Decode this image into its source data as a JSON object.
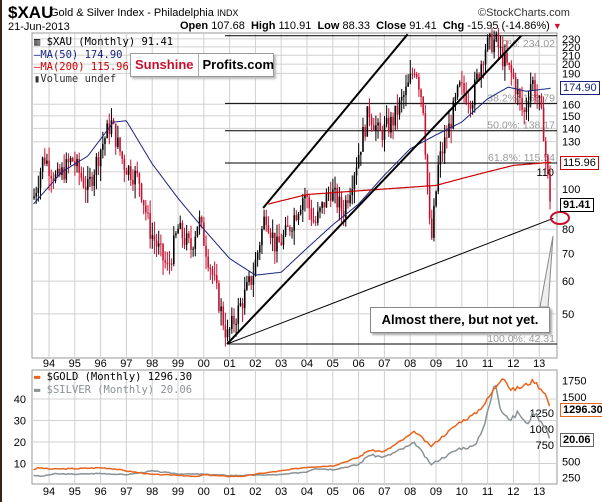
{
  "header": {
    "symbol": "$XAU",
    "subtitle": "Gold & Silver Index - Philadelphia",
    "exchange": "INDX",
    "date": "21-Jun-2013",
    "open_label": "Open",
    "open": "107.68",
    "high_label": "High",
    "high": "110.91",
    "low_label": "Low",
    "low": "88.33",
    "close_label": "Close",
    "close": "91.41",
    "chg_label": "Chg",
    "chg": "-15.95 (-14.86%)",
    "watermark": "©StockCharts.com"
  },
  "legend": {
    "main": "$XAU (Monthly) 91.41",
    "ma50": "MA(50) 174.90",
    "ma200": "MA(200) 115.96",
    "volume": "Volume undef",
    "gold": "$GOLD (Monthly) 1296.30",
    "silver": "$SILVER (Monthly) 20.06"
  },
  "logo": {
    "part1": "Sunshine",
    "part2": "Profits.com"
  },
  "annotation": "Almost there, but not yet.",
  "tags": {
    "ma50": "174.90",
    "ma200": "115.96",
    "close": "91.41",
    "gold": "1296.30",
    "silver": "20.06"
  },
  "colors": {
    "up": "#000000",
    "down": "#c8102e",
    "ma50": "#1a237e",
    "ma200": "#cc0000",
    "gold": "#e8641b",
    "silver": "#8a9296",
    "grid": "#d0d0d0"
  },
  "chart_data": [
    {
      "type": "candlestick",
      "title": "$XAU Gold & Silver Index - Philadelphia (Monthly)",
      "x_tick_labels": [
        "94",
        "95",
        "96",
        "97",
        "98",
        "99",
        "00",
        "01",
        "02",
        "03",
        "04",
        "05",
        "06",
        "07",
        "08",
        "09",
        "10",
        "11",
        "12",
        "13"
      ],
      "y_scale": "log",
      "y_ticks": [
        50,
        60,
        70,
        80,
        100,
        110,
        130,
        140,
        150,
        160,
        190,
        200,
        210,
        220,
        230
      ],
      "ylim": [
        40,
        240
      ],
      "close_keypoints": [
        [
          1993.4,
          95
        ],
        [
          1993.8,
          120
        ],
        [
          1994.3,
          105
        ],
        [
          1994.9,
          118
        ],
        [
          1995.5,
          100
        ],
        [
          1996.0,
          125
        ],
        [
          1996.4,
          145
        ],
        [
          1996.9,
          115
        ],
        [
          1997.5,
          105
        ],
        [
          1997.9,
          80
        ],
        [
          1998.6,
          64
        ],
        [
          1999.0,
          80
        ],
        [
          1999.5,
          72
        ],
        [
          1999.8,
          85
        ],
        [
          2000.4,
          60
        ],
        [
          2000.9,
          44
        ],
        [
          2001.4,
          52
        ],
        [
          2001.9,
          62
        ],
        [
          2002.4,
          88
        ],
        [
          2002.8,
          72
        ],
        [
          2003.2,
          78
        ],
        [
          2003.9,
          98
        ],
        [
          2004.3,
          82
        ],
        [
          2004.9,
          100
        ],
        [
          2005.4,
          88
        ],
        [
          2005.9,
          115
        ],
        [
          2006.4,
          155
        ],
        [
          2006.8,
          135
        ],
        [
          2007.3,
          145
        ],
        [
          2007.9,
          175
        ],
        [
          2008.2,
          200
        ],
        [
          2008.5,
          160
        ],
        [
          2008.8,
          72
        ],
        [
          2009.1,
          115
        ],
        [
          2009.5,
          140
        ],
        [
          2009.9,
          175
        ],
        [
          2010.4,
          165
        ],
        [
          2010.9,
          220
        ],
        [
          2011.3,
          228
        ],
        [
          2011.7,
          200
        ],
        [
          2012.0,
          185
        ],
        [
          2012.4,
          150
        ],
        [
          2012.7,
          185
        ],
        [
          2013.0,
          160
        ],
        [
          2013.2,
          135
        ],
        [
          2013.3,
          110
        ],
        [
          2013.46,
          91.41
        ]
      ],
      "ma50_keypoints": [
        [
          1993.4,
          92
        ],
        [
          1994.5,
          110
        ],
        [
          1995.5,
          120
        ],
        [
          1996.5,
          145
        ],
        [
          1997.0,
          146
        ],
        [
          1998.0,
          115
        ],
        [
          1999.0,
          95
        ],
        [
          2000.0,
          80
        ],
        [
          2001.0,
          68
        ],
        [
          2002.0,
          62
        ],
        [
          2003.0,
          63
        ],
        [
          2004.0,
          72
        ],
        [
          2005.0,
          82
        ],
        [
          2006.0,
          92
        ],
        [
          2007.0,
          108
        ],
        [
          2008.0,
          125
        ],
        [
          2009.0,
          135
        ],
        [
          2010.0,
          145
        ],
        [
          2011.0,
          165
        ],
        [
          2011.8,
          176
        ],
        [
          2012.5,
          172
        ],
        [
          2013.46,
          174.9
        ]
      ],
      "ma200_keypoints": [
        [
          2002.5,
          92
        ],
        [
          2004.0,
          97
        ],
        [
          2006.0,
          99
        ],
        [
          2008.0,
          101
        ],
        [
          2009.0,
          102
        ],
        [
          2010.0,
          106
        ],
        [
          2011.0,
          110
        ],
        [
          2012.0,
          114
        ],
        [
          2013.46,
          115.96
        ]
      ],
      "fibonacci": [
        {
          "label": "0.0%: 234.02",
          "value": 234.02
        },
        {
          "label": "38.2%: 160.79",
          "value": 160.79
        },
        {
          "label": "50.0%: 138.17",
          "value": 138.17
        },
        {
          "label": "61.8%: 115.54",
          "value": 115.54
        },
        {
          "label": "100.0%: 42.31",
          "value": 42.31
        }
      ],
      "trendlines": [
        [
          [
            2000.9,
            42.31
          ],
          [
            2012.3,
            234
          ]
        ],
        [
          [
            2002.3,
            90
          ],
          [
            2007.9,
            236
          ]
        ],
        [
          [
            2000.9,
            42.31
          ],
          [
            2013.55,
            85
          ]
        ]
      ]
    },
    {
      "type": "line",
      "series": [
        {
          "name": "$GOLD (Monthly)",
          "axis": "right",
          "last": 1296.3,
          "keypoints": [
            [
              1993.4,
              370
            ],
            [
              1993.6,
              400
            ],
            [
              1994.0,
              380
            ],
            [
              1995.0,
              385
            ],
            [
              1996.0,
              400
            ],
            [
              1996.5,
              385
            ],
            [
              1997.0,
              350
            ],
            [
              1998.0,
              295
            ],
            [
              1999.0,
              285
            ],
            [
              1999.7,
              260
            ],
            [
              2000.0,
              290
            ],
            [
              2001.0,
              265
            ],
            [
              2001.6,
              270
            ],
            [
              2002.0,
              300
            ],
            [
              2003.0,
              350
            ],
            [
              2004.0,
              410
            ],
            [
              2005.0,
              430
            ],
            [
              2006.0,
              560
            ],
            [
              2006.4,
              670
            ],
            [
              2007.0,
              650
            ],
            [
              2008.2,
              960
            ],
            [
              2008.8,
              730
            ],
            [
              2009.9,
              1100
            ],
            [
              2010.5,
              1230
            ],
            [
              2010.9,
              1400
            ],
            [
              2011.6,
              1830
            ],
            [
              2011.9,
              1600
            ],
            [
              2012.3,
              1650
            ],
            [
              2012.8,
              1750
            ],
            [
              2013.0,
              1650
            ],
            [
              2013.2,
              1580
            ],
            [
              2013.46,
              1296.3
            ]
          ]
        },
        {
          "name": "$SILVER (Monthly)",
          "axis": "left",
          "last": 20.06,
          "keypoints": [
            [
              1993.4,
              4.5
            ],
            [
              1993.7,
              4.0
            ],
            [
              1994.2,
              5.2
            ],
            [
              1995.0,
              5.0
            ],
            [
              1996.0,
              5.4
            ],
            [
              1997.0,
              4.8
            ],
            [
              1998.0,
              6.5
            ],
            [
              1999.0,
              5.2
            ],
            [
              2000.0,
              5.0
            ],
            [
              2001.0,
              4.4
            ],
            [
              2002.0,
              4.6
            ],
            [
              2003.0,
              4.8
            ],
            [
              2004.0,
              6.2
            ],
            [
              2004.3,
              7.8
            ],
            [
              2005.0,
              7.2
            ],
            [
              2006.0,
              9.5
            ],
            [
              2006.4,
              14
            ],
            [
              2007.0,
              13
            ],
            [
              2008.2,
              19.5
            ],
            [
              2008.8,
              9.5
            ],
            [
              2009.9,
              17
            ],
            [
              2010.5,
              18
            ],
            [
              2010.9,
              29
            ],
            [
              2011.3,
              48
            ],
            [
              2011.5,
              36
            ],
            [
              2011.9,
              30
            ],
            [
              2012.2,
              34
            ],
            [
              2012.5,
              28
            ],
            [
              2012.8,
              34
            ],
            [
              2013.0,
              31
            ],
            [
              2013.2,
              28
            ],
            [
              2013.46,
              20.06
            ]
          ]
        }
      ],
      "left_ticks": [
        10,
        20,
        30,
        40
      ],
      "right_ticks": [
        250,
        500,
        750,
        1000,
        1250,
        1500,
        1750
      ]
    }
  ]
}
